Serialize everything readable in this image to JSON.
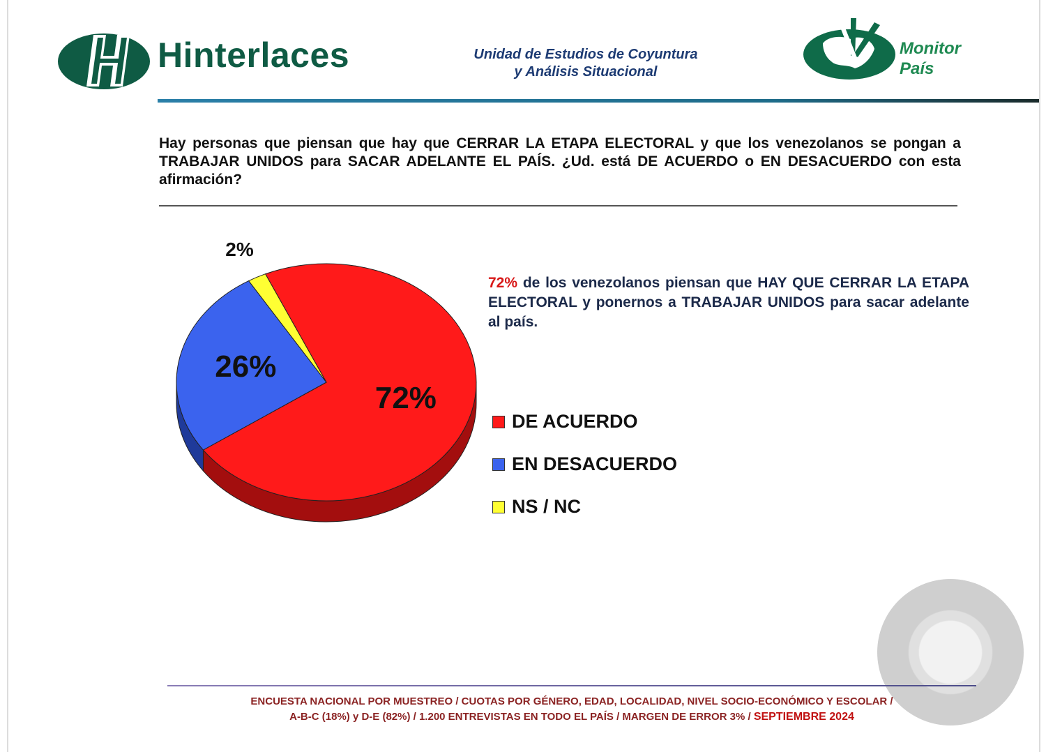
{
  "header": {
    "brand": "Hinterlaces",
    "unit_line1": "Unidad de Estudios de Coyuntura",
    "unit_line2": "y Análisis Situacional",
    "monitor_line1": "Monitor",
    "monitor_line2": "País"
  },
  "question": "Hay personas que piensan que hay que CERRAR LA ETAPA ELECTORAL y que los venezolanos se pongan a TRABAJAR UNIDOS para SACAR ADELANTE EL PAÍS. ¿Ud. está DE ACUERDO o EN DESACUERDO con esta afirmación?",
  "summary": {
    "percent": "72%",
    "text": "de los venezolanos piensan que HAY QUE CERRAR LA ETAPA ELECTORAL y ponernos a TRABAJAR UNIDOS para sacar adelante al país."
  },
  "chart_data": {
    "type": "pie",
    "categories": [
      "DE ACUERDO",
      "EN DESACUERDO",
      "NS / NC"
    ],
    "values": [
      72,
      26,
      2
    ],
    "data_labels": [
      "72%",
      "26%",
      "2%"
    ],
    "colors": [
      "#ff1a1a",
      "#3b63ee",
      "#ffff33"
    ],
    "side_colors": [
      "#a30e0e",
      "#1f3a9a",
      "#b3b300"
    ],
    "legend_position": "right",
    "style": "3d"
  },
  "footer": {
    "line1": "ENCUESTA NACIONAL POR MUESTREO / CUOTAS POR GÉNERO, EDAD, LOCALIDAD, NIVEL SOCIO-ECONÓMICO Y ESCOLAR /",
    "line2": "A-B-C (18%)  y  D-E (82%) / 1.200  ENTREVISTAS EN TODO EL PAÍS /  MARGEN DE ERROR 3% /",
    "date": "SEPTIEMBRE 2024"
  }
}
